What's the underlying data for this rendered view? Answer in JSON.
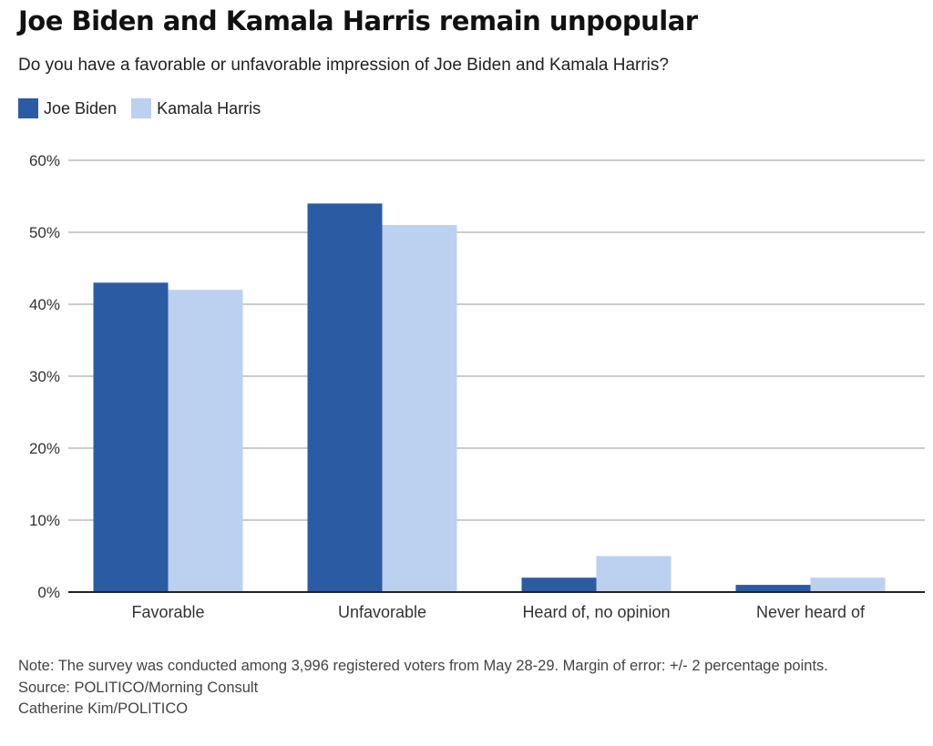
{
  "header": {
    "title": "Joe Biden and Kamala Harris remain unpopular",
    "subtitle": "Do you have a favorable or unfavorable impression of Joe Biden and Kamala Harris?"
  },
  "colors": {
    "biden": "#2b5ca3",
    "harris": "#bcd0ef",
    "grid": "#9a9a9a",
    "axis": "#222222"
  },
  "chart_data": {
    "type": "bar",
    "categories": [
      "Favorable",
      "Unfavorable",
      "Heard of, no opinion",
      "Never heard of"
    ],
    "series": [
      {
        "name": "Joe Biden",
        "values": [
          43,
          54,
          2,
          1
        ]
      },
      {
        "name": "Kamala Harris",
        "values": [
          42,
          51,
          5,
          2
        ]
      }
    ],
    "title": "Joe Biden and Kamala Harris remain unpopular",
    "subtitle": "Do you have a favorable or unfavorable impression of Joe Biden and Kamala Harris?",
    "xlabel": "",
    "ylabel": "",
    "ylim": [
      0,
      60
    ],
    "yticks": [
      0,
      10,
      20,
      30,
      40,
      50,
      60
    ],
    "ytick_labels": [
      "0%",
      "10%",
      "20%",
      "30%",
      "40%",
      "50%",
      "60%"
    ],
    "grid": true,
    "legend": "top-left"
  },
  "footer": {
    "note": "Note: The survey was conducted among 3,996 registered voters from May 28-29. Margin of error: +/- 2 percentage points.",
    "source": "Source: POLITICO/Morning Consult",
    "credit": "Catherine Kim/POLITICO"
  }
}
